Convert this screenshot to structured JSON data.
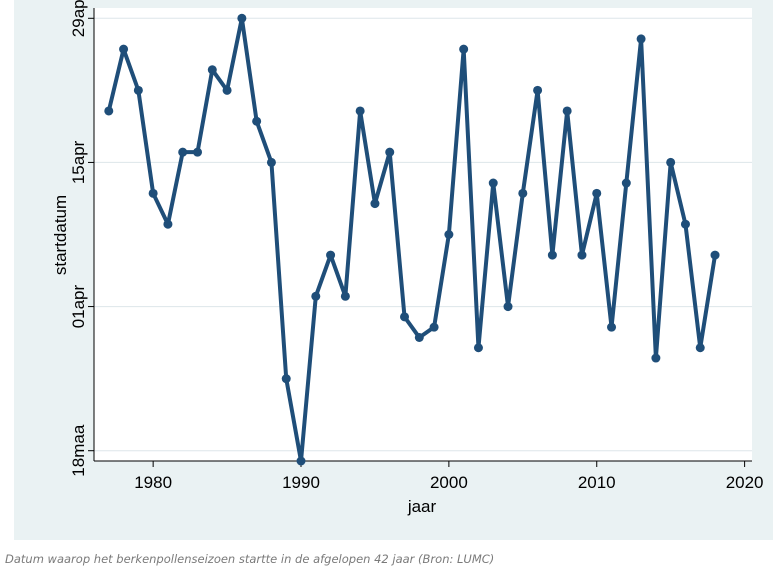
{
  "chart_data": {
    "type": "line",
    "xlabel": "jaar",
    "ylabel": "startdatum",
    "xlim": [
      1976,
      2020.5
    ],
    "x_ticks": [
      1980,
      1990,
      2000,
      2010,
      2020
    ],
    "ylim_days_from_mar18": [
      -1,
      43
    ],
    "y_ticks": [
      {
        "label": "18maa",
        "day": 0
      },
      {
        "label": "01apr",
        "day": 14
      },
      {
        "label": "15apr",
        "day": 28
      },
      {
        "label": "29ap",
        "day": 42
      }
    ],
    "grid": true,
    "legend": "none",
    "color": "#1f4e79",
    "series": [
      {
        "x": [
          1977,
          1978,
          1979,
          1980,
          1981,
          1982,
          1983,
          1984,
          1985,
          1986,
          1987,
          1988,
          1989,
          1990,
          1991,
          1992,
          1993,
          1994,
          1995,
          1996,
          1997,
          1998,
          1999,
          2000,
          2001,
          2002,
          2003,
          2004,
          2005,
          2006,
          2007,
          2008,
          2009,
          2010,
          2011,
          2012,
          2013,
          2014,
          2015,
          2016,
          2017,
          2018
        ],
        "y": [
          "Apr 20",
          "Apr 26",
          "Apr 22",
          "Apr 12",
          "Apr 9",
          "Apr 16",
          "Apr 16",
          "Apr 24",
          "Apr 22",
          "Apr 29",
          "Apr 19",
          "Apr 15",
          "Mar 25",
          "Mar 17",
          "Apr 2",
          "Apr 6",
          "Apr 2",
          "Apr 20",
          "Apr 11",
          "Apr 16",
          "Mar 31",
          "Mar 29",
          "Mar 30",
          "Apr 8",
          "Apr 26",
          "Mar 28",
          "Apr 13",
          "Apr 1",
          "Apr 12",
          "Apr 22",
          "Apr 6",
          "Apr 20",
          "Apr 6",
          "Apr 12",
          "Mar 30",
          "Apr 13",
          "Apr 27",
          "Mar 27",
          "Apr 15",
          "Apr 9",
          "Mar 28",
          "Apr 6"
        ]
      }
    ]
  },
  "caption": "Datum waarop het berkenpollenseizoen startte in de afgelopen 42 jaar (Bron: LUMC)"
}
